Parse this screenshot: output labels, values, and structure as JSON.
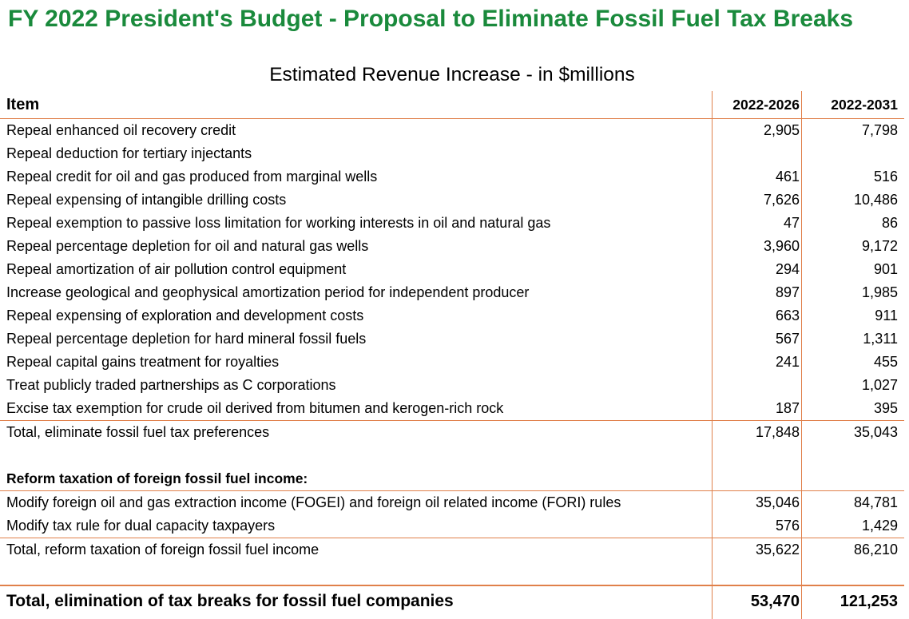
{
  "title": "FY 2022 President's Budget - Proposal to Eliminate Fossil Fuel Tax Breaks",
  "subtitle": "Estimated Revenue Increase - in $millions",
  "header": {
    "item": "Item",
    "col_a": "2022-2026",
    "col_b": "2022-2031"
  },
  "section1_rows": [
    {
      "item": "Repeal enhanced oil recovery credit",
      "a": "2,905",
      "b": "7,798"
    },
    {
      "item": "Repeal deduction for tertiary injectants",
      "a": "",
      "b": ""
    },
    {
      "item": "Repeal credit for oil and gas produced from marginal wells",
      "a": "461",
      "b": "516"
    },
    {
      "item": "Repeal expensing of intangible drilling costs",
      "a": "7,626",
      "b": "10,486"
    },
    {
      "item": "Repeal exemption to passive loss limitation for working interests in oil and natural gas",
      "a": "47",
      "b": "86"
    },
    {
      "item": "Repeal percentage depletion for oil and natural gas wells",
      "a": "3,960",
      "b": "9,172"
    },
    {
      "item": "Repeal amortization of air pollution control equipment",
      "a": "294",
      "b": "901"
    },
    {
      "item": "Increase geological and geophysical amortization period for independent producer",
      "a": "897",
      "b": "1,985"
    },
    {
      "item": "Repeal expensing of exploration and development costs",
      "a": "663",
      "b": "911"
    },
    {
      "item": "Repeal percentage depletion for hard mineral fossil fuels",
      "a": "567",
      "b": "1,311"
    },
    {
      "item": "Repeal capital gains treatment for royalties",
      "a": "241",
      "b": "455"
    },
    {
      "item": "Treat publicly traded partnerships as C corporations",
      "a": "",
      "b": "1,027"
    },
    {
      "item": "Excise tax exemption for crude oil derived from bitumen and kerogen-rich rock",
      "a": "187",
      "b": "395"
    }
  ],
  "section1_total": {
    "item": "Total, eliminate fossil fuel tax preferences",
    "a": "17,848",
    "b": "35,043"
  },
  "section2_heading": "Reform taxation of foreign fossil fuel income:",
  "section2_rows": [
    {
      "item": "Modify foreign oil and gas extraction income (FOGEI) and foreign oil related income (FORI) rules",
      "a": "35,046",
      "b": "84,781"
    },
    {
      "item": "Modify tax rule for dual capacity taxpayers",
      "a": "576",
      "b": "1,429"
    }
  ],
  "section2_total": {
    "item": "Total, reform taxation of foreign fossil fuel income",
    "a": "35,622",
    "b": "86,210"
  },
  "grand_total": {
    "item": "Total, elimination of tax breaks for fossil fuel companies",
    "a": "53,470",
    "b": "121,253"
  },
  "colors": {
    "title": "#1a8a3c",
    "rule": "#e0804a"
  }
}
